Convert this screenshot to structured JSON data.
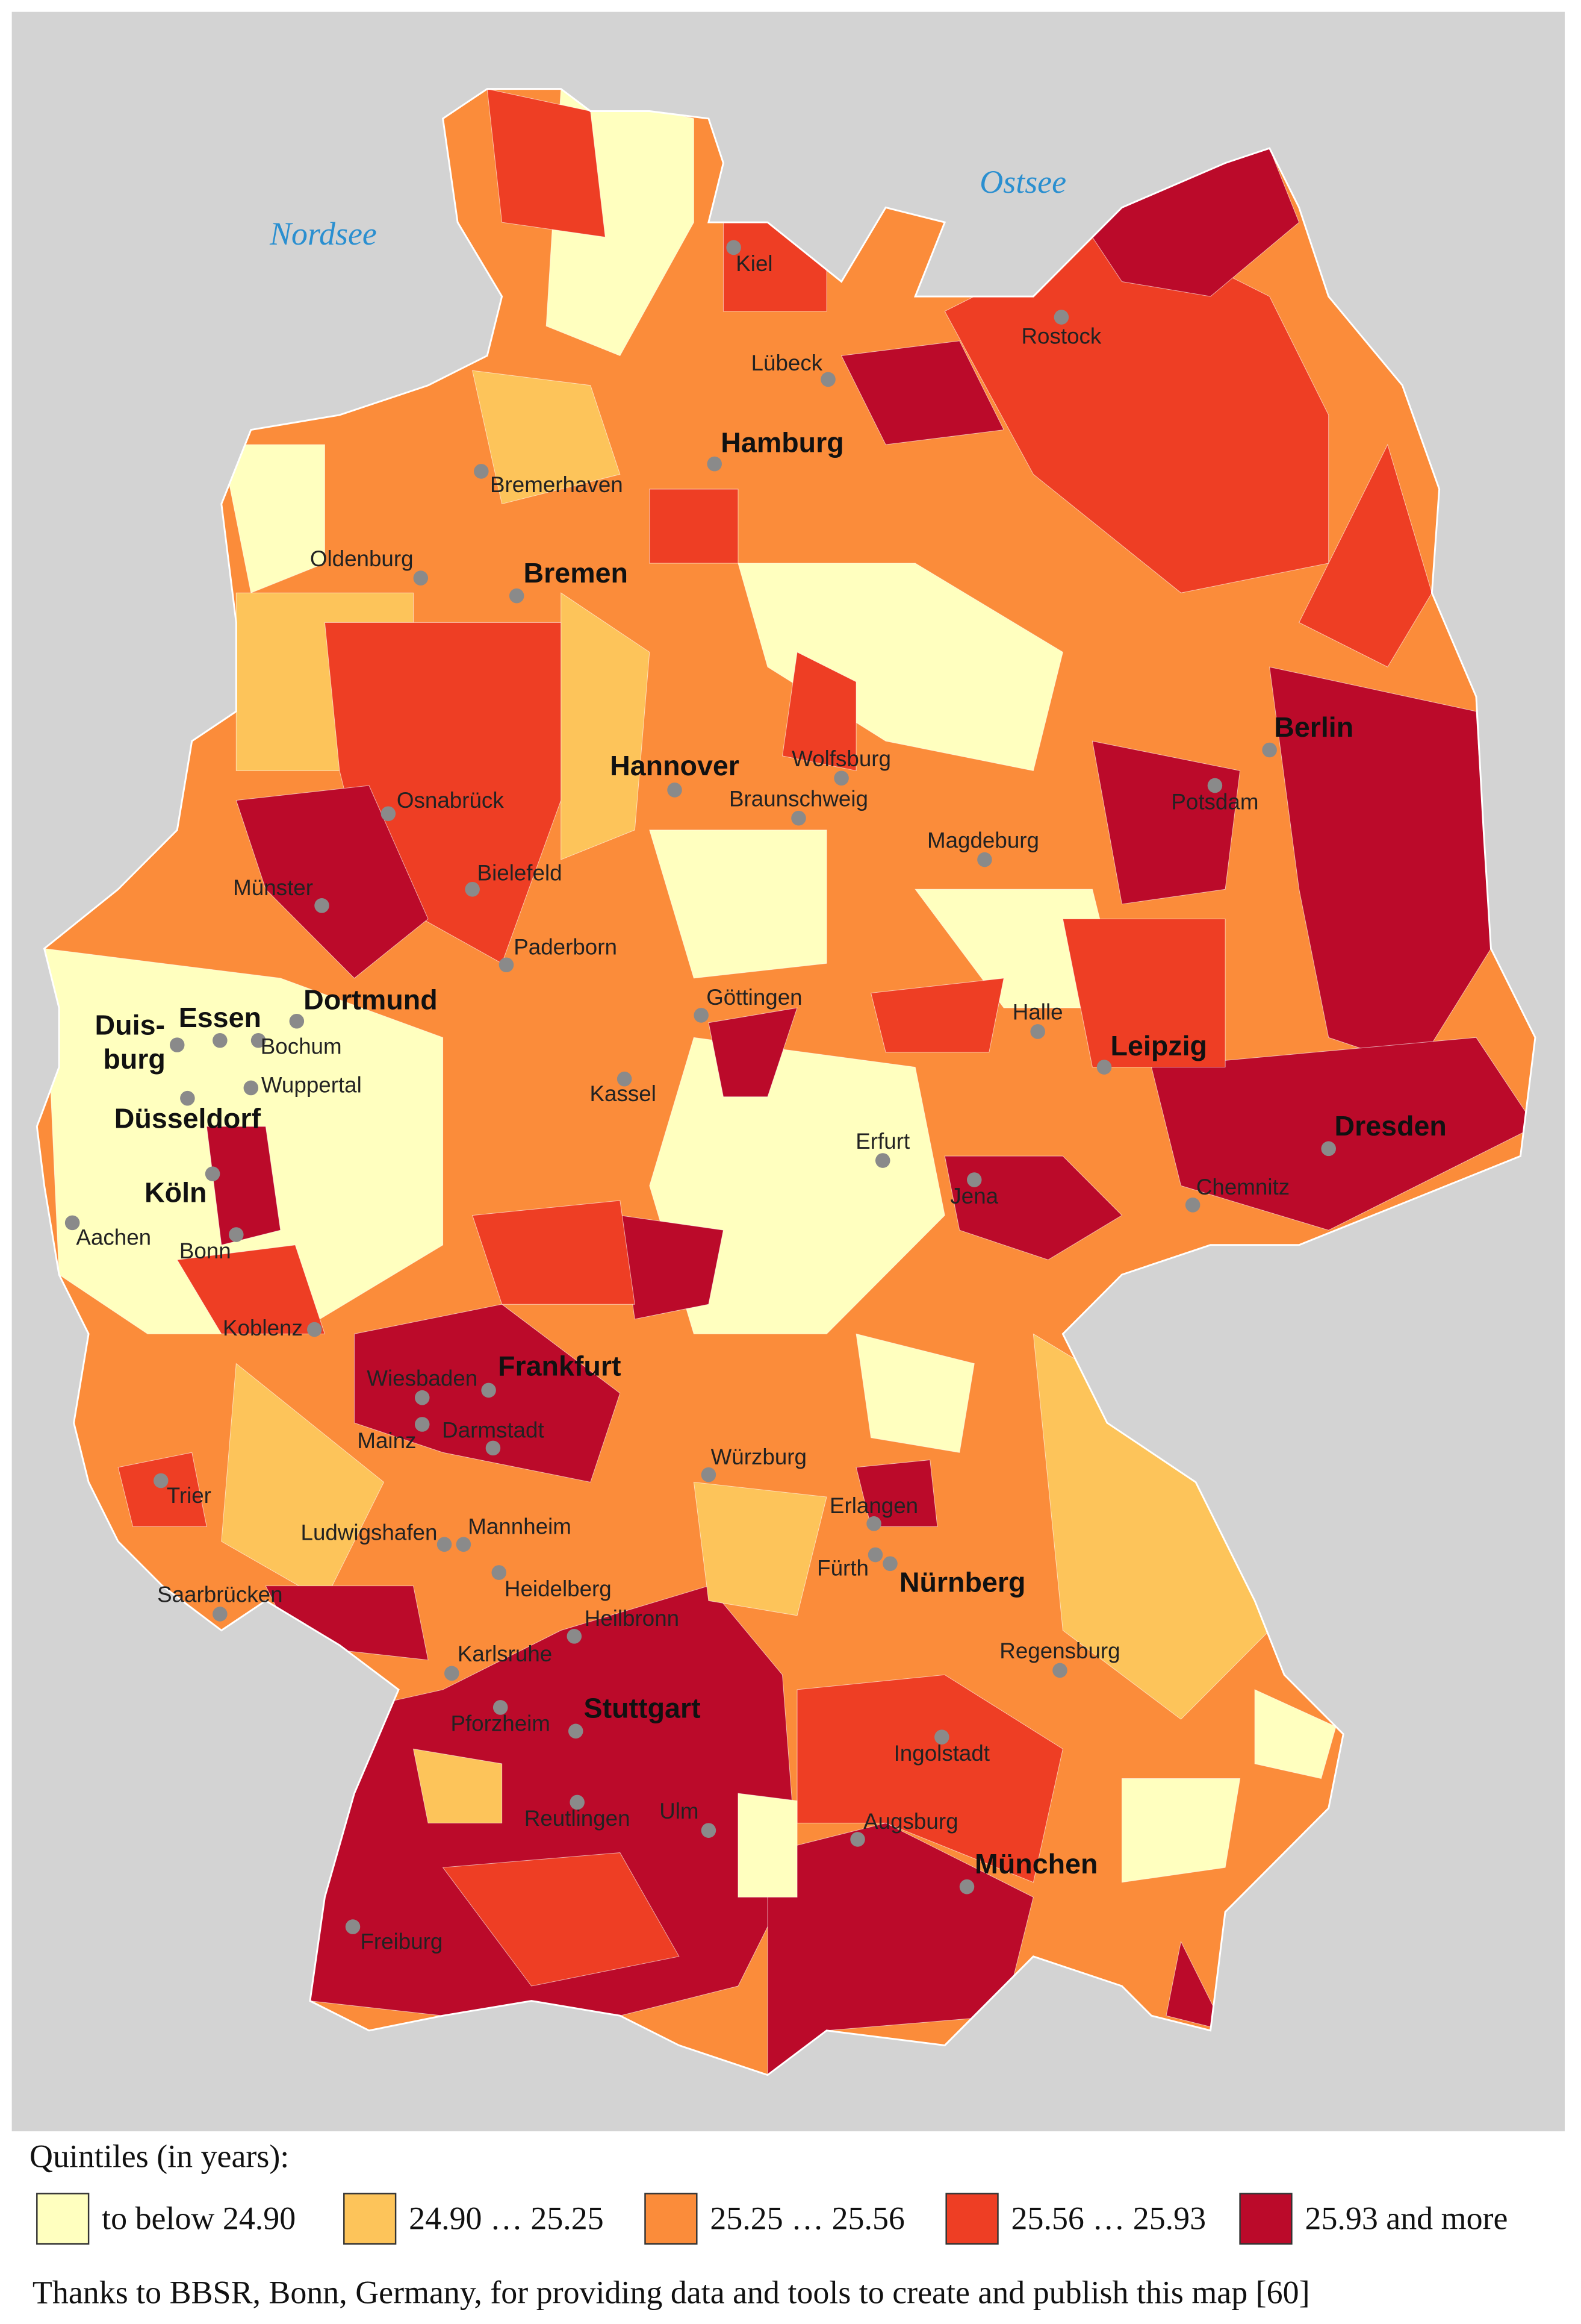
{
  "map": {
    "seas": [
      "Nordsee",
      "Ostsee"
    ],
    "cities": [
      "Kiel",
      "Lübeck",
      "Rostock",
      "Hamburg",
      "Bremerhaven",
      "Oldenburg",
      "Bremen",
      "Hannover",
      "Wolfsburg",
      "Braunschweig",
      "Osnabrück",
      "Berlin",
      "Potsdam",
      "Magdeburg",
      "Bielefeld",
      "Münster",
      "Paderborn",
      "Göttingen",
      "Halle",
      "Leipzig",
      "Dortmund",
      "Essen",
      "Duis-",
      "burg",
      "Bochum",
      "Wuppertal",
      "Kassel",
      "Düsseldorf",
      "Dresden",
      "Erfurt",
      "Jena",
      "Chemnitz",
      "Köln",
      "Aachen",
      "Bonn",
      "Koblenz",
      "Frankfurt",
      "Wiesbaden",
      "Mainz",
      "Darmstadt",
      "Würzburg",
      "Trier",
      "Erlangen",
      "Ludwigshafen",
      "Mannheim",
      "Fürth",
      "Nürnberg",
      "Heidelberg",
      "Saarbrücken",
      "Heilbronn",
      "Regensburg",
      "Karlsruhe",
      "Stuttgart",
      "Pforzheim",
      "Ingolstadt",
      "Ulm",
      "Reutlingen",
      "Augsburg",
      "München",
      "Freiburg"
    ]
  },
  "legend": {
    "title": "Quintiles (in years):",
    "classes": [
      {
        "label": "to below 24.90",
        "color": "#ffffbf"
      },
      {
        "label": "24.90 … 25.25",
        "color": "#fdc45a"
      },
      {
        "label": "25.25 … 25.56",
        "color": "#fb8c3a"
      },
      {
        "label": "25.56 … 25.93",
        "color": "#ee3e24"
      },
      {
        "label": "25.93 and more",
        "color": "#bb0a2a"
      }
    ]
  },
  "footer": "Thanks to BBSR, Bonn, Germany, for providing data and tools to create and publish this map [60]"
}
